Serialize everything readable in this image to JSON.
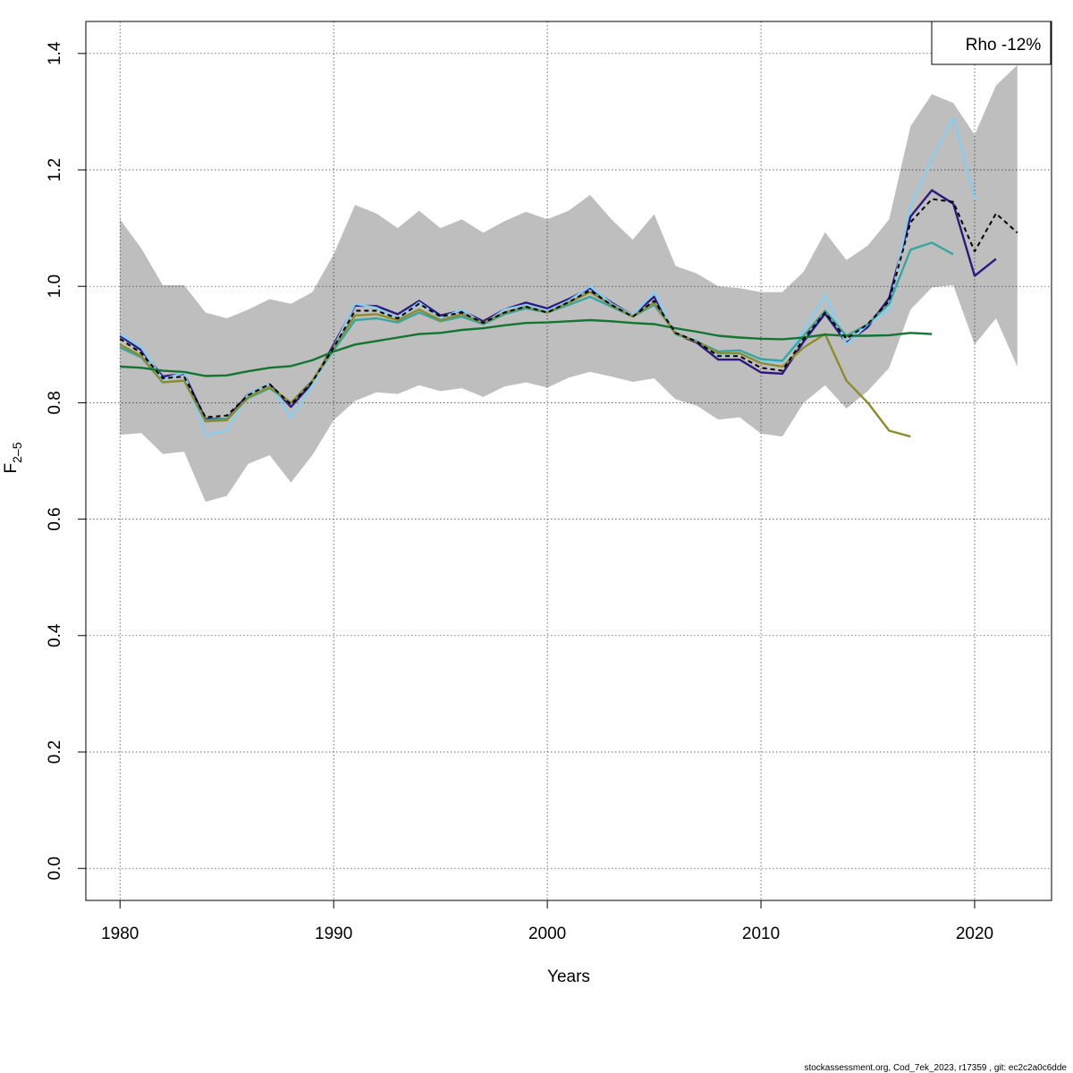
{
  "chart_data": {
    "type": "line",
    "title": "",
    "xlabel": "Years",
    "ylabel": "F",
    "ylabel_subscript": "2–5",
    "xlim": [
      1978.4,
      2023.6
    ],
    "ylim": [
      -0.055,
      1.455
    ],
    "x_ticks": [
      1980,
      1990,
      2000,
      2010,
      2020
    ],
    "y_ticks": [
      0.0,
      0.2,
      0.4,
      0.6,
      0.8,
      1.0,
      1.2,
      1.4
    ],
    "x_tick_labels": [
      "1980",
      "1990",
      "2000",
      "2010",
      "2020"
    ],
    "y_tick_labels": [
      "0.0",
      "0.2",
      "0.4",
      "0.6",
      "0.8",
      "1.0",
      "1.2",
      "1.4"
    ],
    "grid": true,
    "legend": {
      "text": "Rho -12%",
      "placement": "top-right"
    },
    "confidence_band": {
      "color": "#bebebe",
      "x": [
        1980,
        1981,
        1982,
        1983,
        1984,
        1985,
        1986,
        1987,
        1988,
        1989,
        1990,
        1991,
        1992,
        1993,
        1994,
        1995,
        1996,
        1997,
        1998,
        1999,
        2000,
        2001,
        2002,
        2003,
        2004,
        2005,
        2006,
        2007,
        2008,
        2009,
        2010,
        2011,
        2012,
        2013,
        2014,
        2015,
        2016,
        2017,
        2018,
        2019,
        2020,
        2021,
        2022
      ],
      "upper": [
        1.115,
        1.065,
        1.002,
        1.002,
        0.955,
        0.945,
        0.96,
        0.978,
        0.97,
        0.99,
        1.055,
        1.14,
        1.125,
        1.1,
        1.13,
        1.1,
        1.115,
        1.092,
        1.112,
        1.128,
        1.115,
        1.13,
        1.157,
        1.115,
        1.08,
        1.124,
        1.035,
        1.022,
        1.0,
        0.997,
        0.99,
        0.99,
        1.025,
        1.093,
        1.045,
        1.07,
        1.115,
        1.275,
        1.33,
        1.315,
        1.26,
        1.345,
        1.38
      ],
      "lower": [
        0.745,
        0.748,
        0.712,
        0.716,
        0.63,
        0.64,
        0.695,
        0.71,
        0.663,
        0.71,
        0.77,
        0.803,
        0.818,
        0.815,
        0.83,
        0.82,
        0.825,
        0.81,
        0.828,
        0.835,
        0.826,
        0.843,
        0.853,
        0.845,
        0.836,
        0.842,
        0.806,
        0.795,
        0.771,
        0.775,
        0.747,
        0.742,
        0.8,
        0.83,
        0.79,
        0.82,
        0.86,
        0.96,
        0.998,
        1.002,
        0.9,
        0.945,
        0.862
      ]
    },
    "series": [
      {
        "color": "#000000",
        "dashed": true,
        "x": [
          1980,
          1981,
          1982,
          1983,
          1984,
          1985,
          1986,
          1987,
          1988,
          1989,
          1990,
          1991,
          1992,
          1993,
          1994,
          1995,
          1996,
          1997,
          1998,
          1999,
          2000,
          2001,
          2002,
          2003,
          2004,
          2005,
          2006,
          2007,
          2008,
          2009,
          2010,
          2011,
          2012,
          2013,
          2014,
          2015,
          2016,
          2017,
          2018,
          2019,
          2020,
          2021,
          2022
        ],
        "values": [
          0.91,
          0.885,
          0.842,
          0.845,
          0.775,
          0.778,
          0.813,
          0.832,
          0.797,
          0.836,
          0.895,
          0.958,
          0.958,
          0.945,
          0.97,
          0.948,
          0.955,
          0.937,
          0.955,
          0.965,
          0.955,
          0.973,
          0.993,
          0.968,
          0.948,
          0.975,
          0.92,
          0.905,
          0.88,
          0.88,
          0.86,
          0.855,
          0.91,
          0.955,
          0.91,
          0.935,
          0.975,
          1.11,
          1.15,
          1.145,
          1.06,
          1.125,
          1.092
        ]
      },
      {
        "color": "#2e1a7e",
        "dashed": false,
        "x": [
          1980,
          1981,
          1982,
          1983,
          1984,
          1985,
          1986,
          1987,
          1988,
          1989,
          1990,
          1991,
          1992,
          1993,
          1994,
          1995,
          1996,
          1997,
          1998,
          1999,
          2000,
          2001,
          2002,
          2003,
          2004,
          2005,
          2006,
          2007,
          2008,
          2009,
          2010,
          2011,
          2012,
          2013,
          2014,
          2015,
          2016,
          2017,
          2018,
          2019,
          2020,
          2021
        ],
        "values": [
          0.915,
          0.89,
          0.845,
          0.85,
          0.772,
          0.772,
          0.815,
          0.832,
          0.793,
          0.834,
          0.9,
          0.967,
          0.966,
          0.952,
          0.975,
          0.95,
          0.958,
          0.94,
          0.96,
          0.972,
          0.962,
          0.978,
          0.997,
          0.972,
          0.95,
          0.982,
          0.918,
          0.903,
          0.874,
          0.874,
          0.852,
          0.85,
          0.905,
          0.953,
          0.903,
          0.93,
          0.98,
          1.12,
          1.165,
          1.142,
          1.018,
          1.047
        ]
      },
      {
        "color": "#87cdf0",
        "dashed": false,
        "x": [
          1980,
          1981,
          1982,
          1983,
          1984,
          1985,
          1986,
          1987,
          1988,
          1989,
          1990,
          1991,
          1992,
          1993,
          1994,
          1995,
          1996,
          1997,
          1998,
          1999,
          2000,
          2001,
          2002,
          2003,
          2004,
          2005,
          2006,
          2007,
          2008,
          2009,
          2010,
          2011,
          2012,
          2013,
          2014,
          2015,
          2016,
          2017,
          2018,
          2019,
          2020
        ],
        "values": [
          0.918,
          0.895,
          0.84,
          0.852,
          0.745,
          0.752,
          0.815,
          0.832,
          0.775,
          0.83,
          0.895,
          0.97,
          0.963,
          0.945,
          0.972,
          0.945,
          0.96,
          0.935,
          0.96,
          0.968,
          0.958,
          0.975,
          1.0,
          0.97,
          0.95,
          0.99,
          0.915,
          0.908,
          0.88,
          0.885,
          0.87,
          0.87,
          0.925,
          0.985,
          0.9,
          0.935,
          0.96,
          1.14,
          1.22,
          1.29,
          1.15
        ]
      },
      {
        "color": "#3aa59d",
        "dashed": false,
        "x": [
          1980,
          1981,
          1982,
          1983,
          1984,
          1985,
          1986,
          1987,
          1988,
          1989,
          1990,
          1991,
          1992,
          1993,
          1994,
          1995,
          1996,
          1997,
          1998,
          1999,
          2000,
          2001,
          2002,
          2003,
          2004,
          2005,
          2006,
          2007,
          2008,
          2009,
          2010,
          2011,
          2012,
          2013,
          2014,
          2015,
          2016,
          2017,
          2018,
          2019
        ],
        "values": [
          0.895,
          0.878,
          0.835,
          0.838,
          0.77,
          0.772,
          0.808,
          0.825,
          0.8,
          0.838,
          0.89,
          0.942,
          0.945,
          0.938,
          0.955,
          0.94,
          0.948,
          0.935,
          0.952,
          0.962,
          0.955,
          0.968,
          0.982,
          0.965,
          0.948,
          0.968,
          0.92,
          0.905,
          0.888,
          0.89,
          0.875,
          0.872,
          0.915,
          0.958,
          0.915,
          0.935,
          0.97,
          1.063,
          1.075,
          1.055
        ]
      },
      {
        "color": "#8c8c2c",
        "dashed": false,
        "x": [
          1980,
          1981,
          1982,
          1983,
          1984,
          1985,
          1986,
          1987,
          1988,
          1989,
          1990,
          1991,
          1992,
          1993,
          1994,
          1995,
          1996,
          1997,
          1998,
          1999,
          2000,
          2001,
          2002,
          2003,
          2004,
          2005,
          2006,
          2007,
          2008,
          2009,
          2010,
          2011,
          2012,
          2013,
          2014,
          2015,
          2016,
          2017
        ],
        "values": [
          0.9,
          0.88,
          0.835,
          0.838,
          0.768,
          0.77,
          0.81,
          0.827,
          0.8,
          0.838,
          0.895,
          0.95,
          0.952,
          0.942,
          0.96,
          0.942,
          0.952,
          0.937,
          0.955,
          0.965,
          0.955,
          0.972,
          0.99,
          0.968,
          0.948,
          0.972,
          0.918,
          0.905,
          0.885,
          0.885,
          0.868,
          0.862,
          0.895,
          0.918,
          0.838,
          0.8,
          0.752,
          0.742
        ]
      },
      {
        "color": "#127530",
        "dashed": false,
        "x": [
          1980,
          1981,
          1982,
          1983,
          1984,
          1985,
          1986,
          1987,
          1988,
          1989,
          1990,
          1991,
          1992,
          1993,
          1994,
          1995,
          1996,
          1997,
          1998,
          1999,
          2000,
          2001,
          2002,
          2003,
          2004,
          2005,
          2006,
          2007,
          2008,
          2009,
          2010,
          2011,
          2012,
          2013,
          2014,
          2015,
          2016,
          2017,
          2018
        ],
        "values": [
          0.862,
          0.86,
          0.855,
          0.853,
          0.846,
          0.847,
          0.854,
          0.86,
          0.863,
          0.873,
          0.888,
          0.9,
          0.906,
          0.912,
          0.918,
          0.92,
          0.925,
          0.928,
          0.933,
          0.937,
          0.938,
          0.94,
          0.942,
          0.94,
          0.937,
          0.935,
          0.928,
          0.922,
          0.915,
          0.912,
          0.91,
          0.909,
          0.912,
          0.917,
          0.915,
          0.915,
          0.916,
          0.92,
          0.918
        ]
      }
    ]
  },
  "footer": {
    "text": "stockassessment.org, Cod_7ek_2023, r17359 , git: ec2c2a0c6dde"
  }
}
